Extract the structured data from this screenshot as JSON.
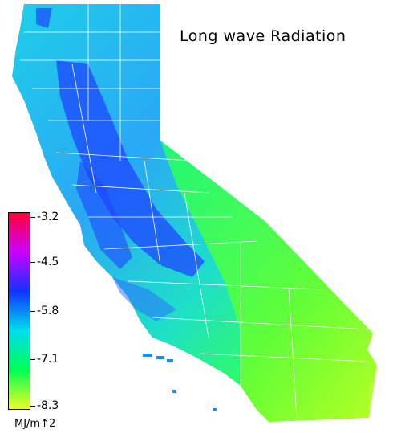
{
  "title": "Long wave Radiation",
  "legend": {
    "unit": "MJ/m↑2",
    "ticks": [
      "-3.2",
      "-4.5",
      "-5.8",
      "-7.1",
      "-8.3"
    ],
    "colors": [
      "#ff0033",
      "#cc00ff",
      "#1133ff",
      "#00ddee",
      "#00ff55",
      "#eeff22"
    ]
  },
  "map_colors": {
    "blue": "#1e46ff",
    "cyan": "#1ecfe8",
    "green": "#1eff6a",
    "yellowgreen": "#9dff2a",
    "ocean": "#ffffff",
    "borders": "#ffffff"
  }
}
